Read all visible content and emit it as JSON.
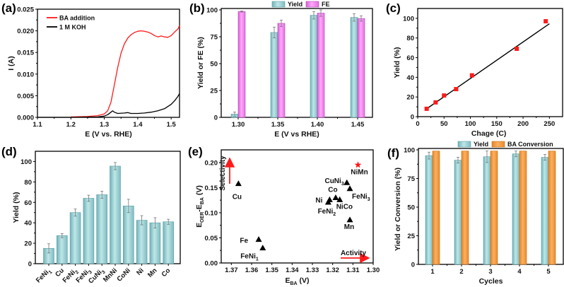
{
  "colors": {
    "teal": "#8cc9cd",
    "teal_dark": "#5fa5ab",
    "magenta": "#f58cf2",
    "magenta_dark": "#c94fc7",
    "orange": "#f59a3c",
    "orange_dark": "#d77b1f",
    "red": "#ff1a1a",
    "black": "#000000"
  },
  "chart_data": [
    {
      "id": "a",
      "panel_label": "(a)",
      "type": "line",
      "xlabel": "E (V vs. RHE)",
      "ylabel": "I (A)",
      "xlim": [
        1.1,
        1.525
      ],
      "ylim": [
        0,
        0.025
      ],
      "xticks": [
        "1.1",
        "1.2",
        "1.3",
        "1.4",
        "1.5"
      ],
      "yticks": [
        "0.000",
        "0.005",
        "0.010",
        "0.015",
        "0.020",
        "0.025"
      ],
      "legend_position": "top-left",
      "series": [
        {
          "name": "BA addition",
          "color": "#ff1a1a",
          "x": [
            1.2,
            1.25,
            1.28,
            1.3,
            1.31,
            1.32,
            1.33,
            1.34,
            1.35,
            1.36,
            1.37,
            1.38,
            1.39,
            1.4,
            1.41,
            1.42,
            1.43,
            1.44,
            1.45,
            1.46,
            1.47,
            1.48,
            1.49,
            1.5,
            1.51,
            1.52,
            1.525
          ],
          "y": [
            0.0001,
            0.0002,
            0.0004,
            0.0008,
            0.0015,
            0.0035,
            0.0075,
            0.0115,
            0.0148,
            0.017,
            0.0183,
            0.0191,
            0.0196,
            0.0199,
            0.02,
            0.0199,
            0.0197,
            0.0194,
            0.0189,
            0.0186,
            0.0188,
            0.0186,
            0.0185,
            0.0189,
            0.0197,
            0.0204,
            0.0212
          ]
        },
        {
          "name": "1 M KOH",
          "color": "#000000",
          "x": [
            1.1,
            1.2,
            1.28,
            1.3,
            1.31,
            1.32,
            1.325,
            1.33,
            1.34,
            1.36,
            1.37,
            1.38,
            1.4,
            1.42,
            1.44,
            1.46,
            1.48,
            1.5,
            1.51,
            1.52,
            1.525
          ],
          "y": [
            0.0,
            0.0,
            0.0001,
            0.0003,
            0.0006,
            0.0012,
            0.0015,
            0.0012,
            0.0009,
            0.001,
            0.0011,
            0.0009,
            0.0009,
            0.001,
            0.0012,
            0.0015,
            0.002,
            0.003,
            0.0038,
            0.0048,
            0.0055
          ]
        }
      ]
    },
    {
      "id": "b",
      "panel_label": "(b)",
      "type": "bar",
      "xlabel": "E (V vs RHE)",
      "ylabel": "Yield or FE (%)",
      "categories": [
        "1.30",
        "1.35",
        "1.40",
        "1.45"
      ],
      "ylim": [
        0,
        100
      ],
      "yticks": [
        "0",
        "25",
        "50",
        "75",
        "100"
      ],
      "legend_position": "top-center",
      "series": [
        {
          "name": "Yield",
          "color": "teal",
          "values": [
            3,
            79,
            95,
            93
          ],
          "errors": [
            2,
            5,
            3.5,
            3.5
          ]
        },
        {
          "name": "FE",
          "color": "magenta",
          "values": [
            98.5,
            87.5,
            97,
            92
          ],
          "errors": [
            0.5,
            3,
            3,
            2.5
          ]
        }
      ]
    },
    {
      "id": "c",
      "panel_label": "(c)",
      "type": "scatter",
      "xlabel": "Chage (C)",
      "ylabel": "Yield (%)",
      "xlim": [
        0,
        275
      ],
      "ylim": [
        0,
        110
      ],
      "xticks": [
        "0",
        "50",
        "100",
        "150",
        "200",
        "250"
      ],
      "yticks": [
        "0",
        "20",
        "40",
        "60",
        "80",
        "100"
      ],
      "points": {
        "x": [
          17,
          34,
          50,
          73,
          103,
          188,
          243
        ],
        "y": [
          8,
          14.5,
          21.5,
          28,
          42,
          69,
          97
        ],
        "color": "#ff1a1a",
        "marker": "square"
      },
      "fit_line": {
        "x": [
          17,
          250
        ],
        "y": [
          8,
          94.5
        ],
        "color": "#000000"
      }
    },
    {
      "id": "d",
      "panel_label": "(d)",
      "type": "bar",
      "xlabel": "",
      "ylabel": "Yield (%)",
      "categories": [
        "FeNi₁",
        "Cu",
        "FeNi₂",
        "FeNi₃",
        "CuNi₃",
        "MnNi",
        "CoNi",
        "Ni",
        "Mn",
        "Co"
      ],
      "ylim": [
        0,
        110
      ],
      "yticks": [
        "0",
        "20",
        "40",
        "60",
        "80",
        "100"
      ],
      "series": [
        {
          "name": "Yield",
          "color": "teal",
          "values": [
            15,
            27.5,
            50,
            64,
            67.5,
            95.5,
            56.5,
            42.5,
            40,
            41
          ],
          "errors": [
            4.5,
            2,
            3.5,
            3,
            3.5,
            3.5,
            6.5,
            4.5,
            5,
            2.5
          ]
        }
      ]
    },
    {
      "id": "e",
      "panel_label": "(e)",
      "type": "scatter",
      "xlabel": "E_BA (V)",
      "ylabel": "E_OER-E_BA (V)",
      "xlim": [
        1.375,
        1.3
      ],
      "ylim": [
        0,
        0.225
      ],
      "xticks": [
        "1.37",
        "1.36",
        "1.35",
        "1.34",
        "1.33",
        "1.32",
        "1.31",
        "1.30"
      ],
      "yticks": [
        "0.00",
        "0.05",
        "0.10",
        "0.15",
        "0.20"
      ],
      "points": [
        {
          "label": "Cu",
          "x": 1.3665,
          "y": 0.158,
          "marker": "triangle",
          "color": "#000000"
        },
        {
          "label": "Fe",
          "x": 1.3565,
          "y": 0.047,
          "marker": "triangle",
          "color": "#000000"
        },
        {
          "label": "FeNi₁",
          "x": 1.3545,
          "y": 0.03,
          "marker": "triangle",
          "color": "#000000"
        },
        {
          "label": "Ni",
          "x": 1.3215,
          "y": 0.126,
          "marker": "triangle",
          "color": "#000000"
        },
        {
          "label": "FeNi₂",
          "x": 1.3222,
          "y": 0.121,
          "marker": "triangle",
          "color": "#000000"
        },
        {
          "label": "Co",
          "x": 1.3185,
          "y": 0.13,
          "marker": "triangle",
          "color": "#000000"
        },
        {
          "label": "NiCo",
          "x": 1.3165,
          "y": 0.126,
          "marker": "triangle",
          "color": "#000000"
        },
        {
          "label": "CuNi₃",
          "x": 1.313,
          "y": 0.16,
          "marker": "triangle",
          "color": "#000000"
        },
        {
          "label": "FeNi₃",
          "x": 1.3115,
          "y": 0.148,
          "marker": "triangle",
          "color": "#000000"
        },
        {
          "label": "Mn",
          "x": 1.3115,
          "y": 0.086,
          "marker": "triangle",
          "color": "#000000"
        },
        {
          "label": "NiMn",
          "x": 1.3075,
          "y": 0.195,
          "marker": "star",
          "color": "#ff1a1a"
        }
      ],
      "annotations": [
        {
          "text": "Selectivity",
          "direction": "up",
          "color": "#ff1a1a"
        },
        {
          "text": "Activity",
          "direction": "right",
          "color": "#ff1a1a"
        }
      ]
    },
    {
      "id": "f",
      "panel_label": "(f)",
      "type": "bar",
      "xlabel": "Cycles",
      "ylabel": "Yield or Conversion (%)",
      "categories": [
        "1",
        "2",
        "3",
        "4",
        "5"
      ],
      "ylim": [
        0,
        100
      ],
      "yticks": [
        "0",
        "25",
        "50",
        "75",
        "100"
      ],
      "legend_position": "top-center",
      "series": [
        {
          "name": "Yield",
          "color": "teal",
          "values": [
            95,
            91,
            94,
            96.5,
            93.5
          ],
          "errors": [
            3,
            2.5,
            5,
            2.5,
            2.5
          ]
        },
        {
          "name": "BA Conversion",
          "color": "orange",
          "values": [
            99,
            99,
            99,
            99,
            99
          ],
          "errors": [
            0,
            0,
            0,
            0,
            0
          ]
        }
      ]
    }
  ]
}
